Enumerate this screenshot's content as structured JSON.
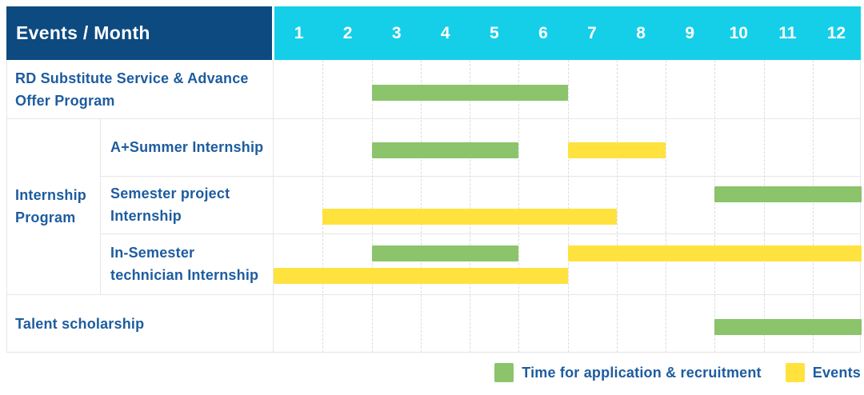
{
  "colors": {
    "header_bg": "#0d4a80",
    "months_bg": "#15cfe9",
    "label_text": "#1d5c9f",
    "green": "#8bc46b",
    "yellow": "#ffe23e",
    "grid_dash": "#dcdcdc",
    "row_border": "#e6e6e6"
  },
  "chart_data": {
    "type": "gantt",
    "title": "Events / Month",
    "xlabel": "Month",
    "months": [
      "1",
      "2",
      "3",
      "4",
      "5",
      "6",
      "7",
      "8",
      "9",
      "10",
      "11",
      "12"
    ],
    "x_range": [
      1,
      12
    ],
    "grid": "vertical-dashed",
    "legend_position": "bottom-right",
    "legend": [
      {
        "key": "recruitment",
        "label": "Time for application & recruitment",
        "color": "#8bc46b"
      },
      {
        "key": "event",
        "label": "Events",
        "color": "#ffe23e"
      }
    ],
    "rows": [
      {
        "group": "",
        "label": "RD Substitute Service & Advance Offer Program",
        "lanes": 1,
        "bars": [
          {
            "kind": "recruitment",
            "start_month": 3,
            "end_month": 6,
            "lane": 0
          }
        ]
      },
      {
        "group": "Internship Program",
        "label": "A+Summer Internship",
        "lanes": 1,
        "bars": [
          {
            "kind": "recruitment",
            "start_month": 3,
            "end_month": 5,
            "lane": 0
          },
          {
            "kind": "event",
            "start_month": 7,
            "end_month": 8,
            "lane": 0
          }
        ]
      },
      {
        "group": "Internship Program",
        "label": "Semester project Internship",
        "lanes": 2,
        "bars": [
          {
            "kind": "recruitment",
            "start_month": 10,
            "end_month": 12,
            "lane": 0
          },
          {
            "kind": "event",
            "start_month": 2,
            "end_month": 7,
            "lane": 1
          }
        ]
      },
      {
        "group": "Internship Program",
        "label": "In-Semester technician Internship",
        "lanes": 2,
        "bars": [
          {
            "kind": "recruitment",
            "start_month": 3,
            "end_month": 5,
            "lane": 0
          },
          {
            "kind": "event",
            "start_month": 7,
            "end_month": 12,
            "lane": 0
          },
          {
            "kind": "event",
            "start_month": 1,
            "end_month": 6,
            "lane": 1
          }
        ]
      },
      {
        "group": "",
        "label": "Talent scholarship",
        "lanes": 1,
        "bars": [
          {
            "kind": "recruitment",
            "start_month": 10,
            "end_month": 12,
            "lane": 0
          }
        ]
      }
    ]
  }
}
